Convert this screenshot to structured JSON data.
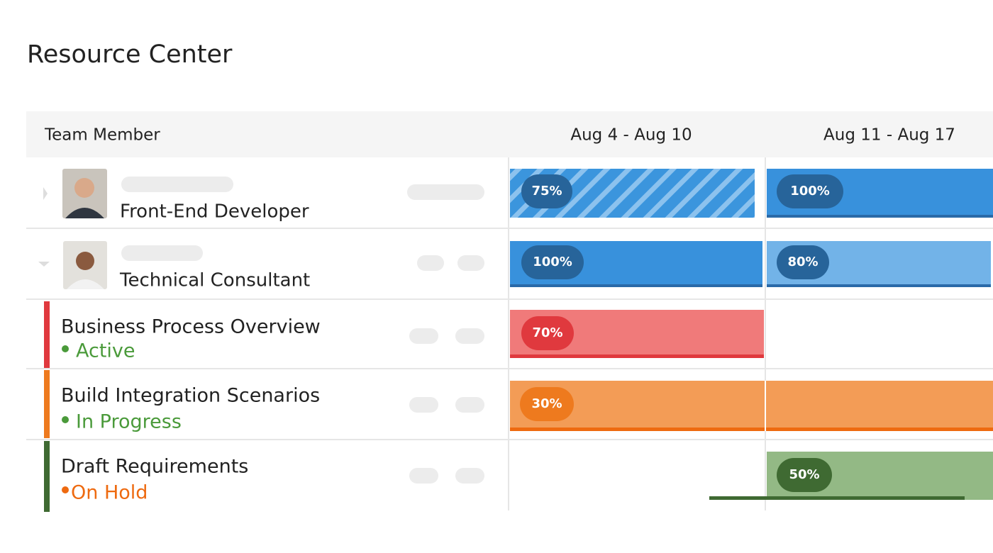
{
  "header": {
    "title": "Resource Center"
  },
  "table": {
    "columns": [
      "Team Member",
      "Aug 4 - Aug 10",
      "Aug 11 - Aug 17"
    ],
    "members": [
      {
        "role": "Front-End Developer",
        "allocations": [
          "75%",
          "100%"
        ]
      },
      {
        "role": "Technical Consultant",
        "allocations": [
          "100%",
          "80%"
        ]
      }
    ],
    "tasks": [
      {
        "name": "Business Process Overview",
        "status": "Active",
        "allocation": "70%"
      },
      {
        "name": "Build Integration Scenarios",
        "status": "In Progress",
        "allocation": "30%"
      },
      {
        "name": "Draft Requirements",
        "status": "On Hold",
        "allocation": "50%"
      }
    ]
  }
}
